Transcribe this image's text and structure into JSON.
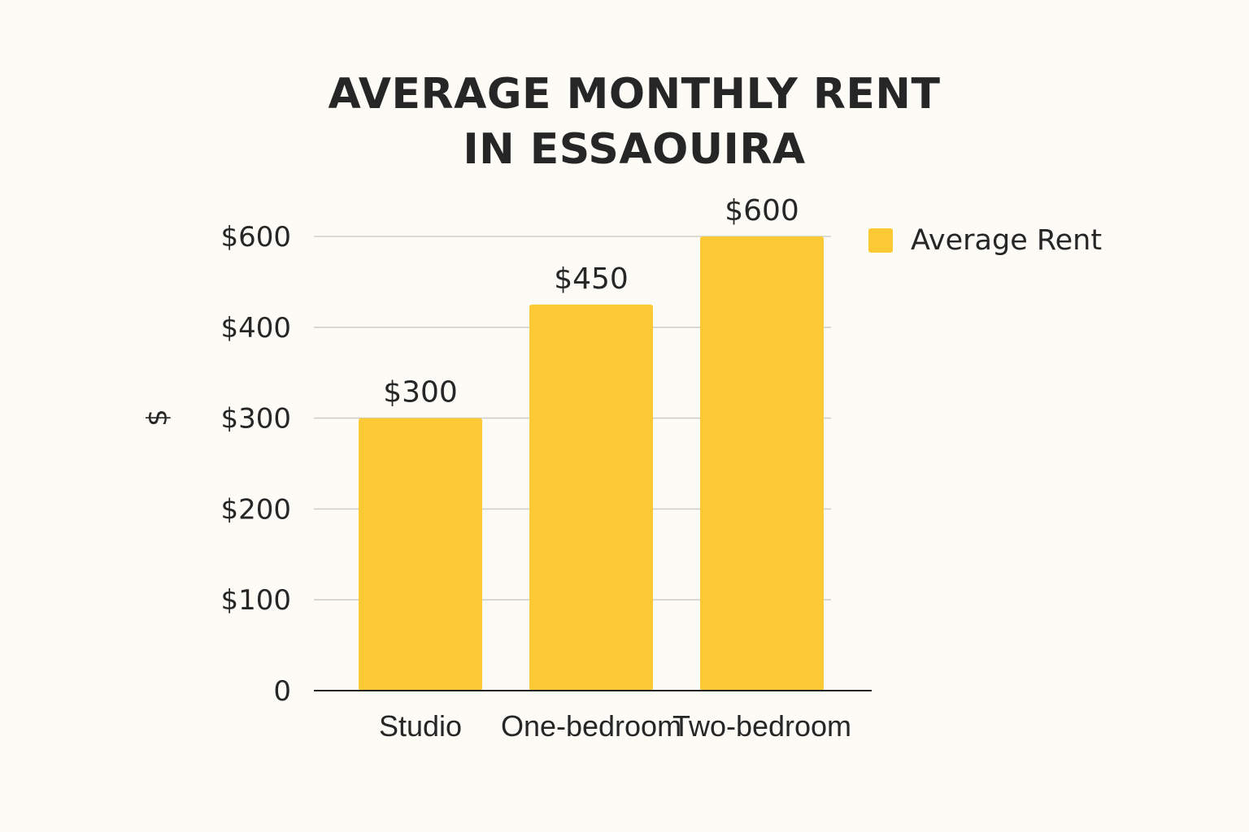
{
  "chart_data": {
    "type": "bar",
    "title_lines": [
      "AVERAGE MONTHLY RENT",
      "IN ESSAOUIRA"
    ],
    "ylabel": "$",
    "categories": [
      "Studio",
      "One-bedroom",
      "Two-bedroom"
    ],
    "series": [
      {
        "name": "Average Rent",
        "values": [
          300,
          450,
          600
        ],
        "data_labels": [
          "$300",
          "$450",
          "$600"
        ],
        "color": "#fdc935"
      }
    ],
    "y_ticks": [
      {
        "value": 0,
        "label": "0"
      },
      {
        "value": 100,
        "label": "$100"
      },
      {
        "value": 200,
        "label": "$200"
      },
      {
        "value": 300,
        "label": "$300"
      },
      {
        "value": 400,
        "label": "$400"
      },
      {
        "value": 600,
        "label": "$600"
      }
    ],
    "grid": true,
    "legend_position": "top-right"
  }
}
